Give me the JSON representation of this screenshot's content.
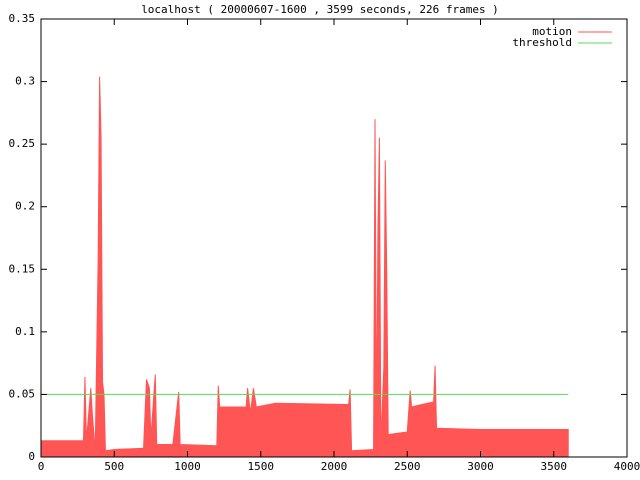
{
  "chart_data": {
    "type": "area",
    "title": "localhost ( 20000607-1600 , 3599 seconds, 226 frames )",
    "xlim": [
      0,
      4000
    ],
    "ylim": [
      0,
      0.35
    ],
    "xticks": [
      0,
      500,
      1000,
      1500,
      2000,
      2500,
      3000,
      3500,
      4000
    ],
    "yticks": [
      0,
      0.05,
      0.1,
      0.15,
      0.2,
      0.25,
      0.3,
      0.35
    ],
    "legend": "upper right",
    "series": [
      {
        "name": "motion",
        "color": "#ff5555",
        "style": "area",
        "x": [
          0,
          290,
          300,
          310,
          340,
          350,
          370,
          390,
          400,
          410,
          420,
          430,
          440,
          500,
          700,
          720,
          740,
          750,
          780,
          790,
          900,
          940,
          950,
          1200,
          1210,
          1220,
          1400,
          1410,
          1430,
          1450,
          1470,
          1600,
          2100,
          2110,
          2120,
          2270,
          2280,
          2290,
          2300,
          2310,
          2320,
          2340,
          2350,
          2360,
          2370,
          2500,
          2520,
          2530,
          2600,
          2680,
          2690,
          2700,
          3000,
          3599
        ],
        "values": [
          0.013,
          0.013,
          0.064,
          0.013,
          0.055,
          0.035,
          0.005,
          0.158,
          0.304,
          0.255,
          0.06,
          0.05,
          0.005,
          0.006,
          0.007,
          0.062,
          0.055,
          0.015,
          0.066,
          0.01,
          0.01,
          0.052,
          0.01,
          0.009,
          0.057,
          0.04,
          0.04,
          0.055,
          0.035,
          0.055,
          0.04,
          0.043,
          0.042,
          0.054,
          0.005,
          0.006,
          0.27,
          0.02,
          0.183,
          0.255,
          0.01,
          0.072,
          0.237,
          0.148,
          0.018,
          0.02,
          0.053,
          0.04,
          0.042,
          0.044,
          0.073,
          0.023,
          0.022,
          0.022
        ]
      },
      {
        "name": "threshold",
        "color": "#55dd55",
        "style": "line",
        "x": [
          0,
          3599
        ],
        "values": [
          0.05,
          0.05
        ]
      }
    ]
  }
}
